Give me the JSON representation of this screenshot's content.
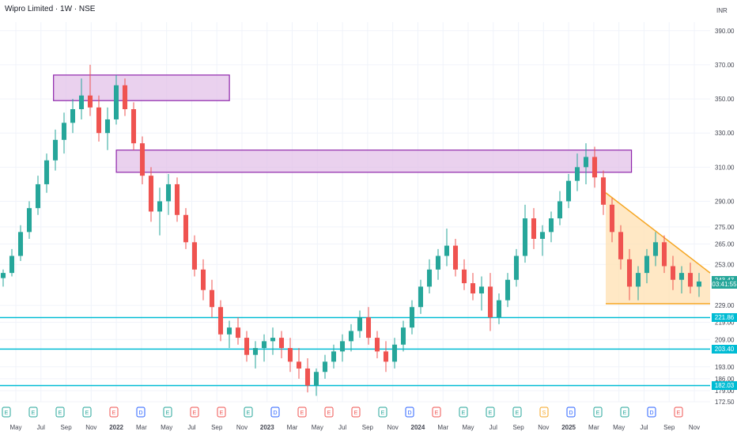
{
  "header": {
    "title": "Wipro Limited · 1W · NSE",
    "currency": "INR"
  },
  "colors": {
    "up": "#26a69a",
    "down": "#ef5350",
    "grid": "#f0f3fa",
    "support": "#00bcd4",
    "zone_fill": "#e1bee7",
    "zone_stroke": "#8e24aa",
    "triangle_fill": "#ffe0b2",
    "triangle_stroke": "#f5a623",
    "earnings": "#26a69a",
    "dividend": "#2962ff",
    "earnings_red": "#ef5350",
    "split": "#f5a623"
  },
  "chart_data": {
    "type": "candlestick",
    "title": "Wipro Limited · 1W · NSE",
    "ylabel": "INR",
    "ylim": [
      172.5,
      395
    ],
    "y_ticks": [
      "390.00",
      "370.00",
      "350.00",
      "330.00",
      "310.00",
      "290.00",
      "275.00",
      "265.00",
      "253.00",
      "229.00",
      "219.00",
      "209.00",
      "203.40",
      "193.00",
      "186.00",
      "179.00",
      "172.50"
    ],
    "x_ticks": [
      "May",
      "Jul",
      "Sep",
      "Nov",
      "2022",
      "Mar",
      "May",
      "Jul",
      "Sep",
      "Nov",
      "2023",
      "Mar",
      "May",
      "Jul",
      "Sep",
      "Nov",
      "2024",
      "Mar",
      "May",
      "Jul",
      "Sep",
      "Nov",
      "2025",
      "Mar",
      "May",
      "Jul",
      "Sep",
      "Nov"
    ],
    "price_levels": [
      {
        "label": "243.47",
        "value": 243.47,
        "color": "#26a69a"
      },
      {
        "label": "03:41:55",
        "value": 241.5,
        "color": "#26a69a"
      },
      {
        "label": "221.86",
        "value": 221.86,
        "color": "#00bcd4"
      },
      {
        "label": "203.40",
        "value": 203.4,
        "color": "#00bcd4"
      },
      {
        "label": "182.03",
        "value": 182.03,
        "color": "#00bcd4"
      }
    ],
    "support_lines": [
      221.86,
      203.4,
      182.03
    ],
    "resistance_zones": [
      {
        "from_date": "2021-08",
        "to_date": "2022-10",
        "low": 349,
        "high": 364
      },
      {
        "from_date": "2022-01",
        "to_date": "2025-06",
        "low": 307,
        "high": 320
      }
    ],
    "triangle": {
      "top": 295,
      "bottom": 230,
      "apex": 248
    },
    "candles_ohlc_approx": [
      [
        245,
        250,
        240,
        248
      ],
      [
        248,
        262,
        246,
        258
      ],
      [
        258,
        276,
        255,
        272
      ],
      [
        272,
        290,
        268,
        286
      ],
      [
        286,
        305,
        282,
        300
      ],
      [
        300,
        318,
        295,
        314
      ],
      [
        314,
        332,
        308,
        326
      ],
      [
        326,
        342,
        318,
        336
      ],
      [
        336,
        350,
        330,
        344
      ],
      [
        344,
        362,
        338,
        352
      ],
      [
        352,
        370,
        340,
        345
      ],
      [
        345,
        352,
        325,
        330
      ],
      [
        330,
        345,
        320,
        338
      ],
      [
        338,
        364,
        335,
        358
      ],
      [
        358,
        362,
        340,
        344
      ],
      [
        344,
        348,
        320,
        324
      ],
      [
        324,
        328,
        300,
        305
      ],
      [
        305,
        310,
        278,
        284
      ],
      [
        284,
        298,
        270,
        290
      ],
      [
        290,
        306,
        282,
        300
      ],
      [
        300,
        304,
        278,
        282
      ],
      [
        282,
        286,
        262,
        266
      ],
      [
        266,
        270,
        246,
        250
      ],
      [
        250,
        256,
        232,
        238
      ],
      [
        238,
        244,
        222,
        228
      ],
      [
        228,
        232,
        208,
        212
      ],
      [
        212,
        220,
        204,
        216
      ],
      [
        216,
        222,
        206,
        210
      ],
      [
        210,
        214,
        196,
        200
      ],
      [
        200,
        208,
        192,
        204
      ],
      [
        204,
        212,
        196,
        208
      ],
      [
        208,
        216,
        200,
        210
      ],
      [
        210,
        214,
        198,
        204
      ],
      [
        204,
        210,
        190,
        196
      ],
      [
        196,
        204,
        186,
        192
      ],
      [
        192,
        198,
        178,
        182
      ],
      [
        182,
        192,
        176,
        190
      ],
      [
        190,
        200,
        186,
        196
      ],
      [
        196,
        206,
        192,
        202
      ],
      [
        202,
        212,
        196,
        208
      ],
      [
        208,
        218,
        202,
        214
      ],
      [
        214,
        226,
        210,
        222
      ],
      [
        222,
        228,
        206,
        210
      ],
      [
        210,
        214,
        198,
        202
      ],
      [
        202,
        208,
        190,
        196
      ],
      [
        196,
        210,
        192,
        206
      ],
      [
        206,
        220,
        202,
        216
      ],
      [
        216,
        232,
        212,
        228
      ],
      [
        228,
        244,
        224,
        240
      ],
      [
        240,
        256,
        236,
        250
      ],
      [
        250,
        262,
        244,
        258
      ],
      [
        258,
        274,
        252,
        264
      ],
      [
        264,
        268,
        246,
        250
      ],
      [
        250,
        256,
        238,
        242
      ],
      [
        242,
        248,
        232,
        236
      ],
      [
        236,
        246,
        226,
        240
      ],
      [
        240,
        248,
        214,
        222
      ],
      [
        222,
        236,
        218,
        232
      ],
      [
        232,
        248,
        228,
        244
      ],
      [
        244,
        262,
        240,
        258
      ],
      [
        258,
        288,
        254,
        280
      ],
      [
        280,
        286,
        262,
        268
      ],
      [
        268,
        276,
        258,
        272
      ],
      [
        272,
        284,
        266,
        280
      ],
      [
        280,
        296,
        276,
        290
      ],
      [
        290,
        306,
        286,
        302
      ],
      [
        302,
        318,
        296,
        310
      ],
      [
        310,
        324,
        300,
        316
      ],
      [
        316,
        322,
        298,
        304
      ],
      [
        304,
        308,
        282,
        288
      ],
      [
        288,
        292,
        266,
        272
      ],
      [
        272,
        276,
        250,
        256
      ],
      [
        256,
        262,
        232,
        240
      ],
      [
        240,
        252,
        232,
        248
      ],
      [
        248,
        262,
        242,
        258
      ],
      [
        258,
        272,
        252,
        266
      ],
      [
        266,
        270,
        248,
        252
      ],
      [
        252,
        258,
        238,
        244
      ],
      [
        244,
        252,
        236,
        248
      ],
      [
        248,
        254,
        236,
        240
      ],
      [
        240,
        248,
        234,
        243
      ]
    ]
  }
}
